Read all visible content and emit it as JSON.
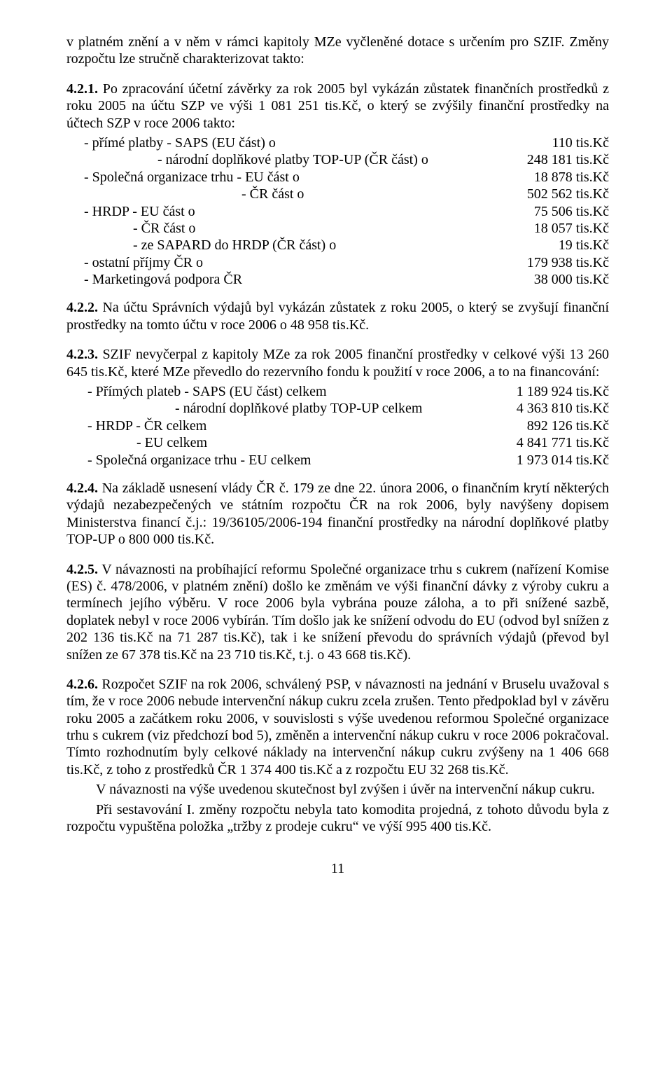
{
  "intro": {
    "line1": "v platném znění a v něm v rámci kapitoly MZe vyčleněné dotace s určením pro SZIF. Změny rozpočtu lze stručně charakterizovat  takto:"
  },
  "s421": {
    "head": "4.2.1.",
    "body": "  Po zpracování účetní závěrky za rok 2005 byl vykázán zůstatek finančních prostředků z roku 2005 na účtu SZP ve výši 1 081 251 tis.Kč, o který se zvýšily finanční prostředky na účtech SZP v roce 2006 takto:",
    "rows": [
      {
        "l": "     - přímé platby - SAPS (EU část) o",
        "r": "110  tis.Kč"
      },
      {
        "l": "                          - národní doplňkové platby TOP-UP (ČR část) o",
        "r": "248 181  tis.Kč"
      },
      {
        "l": "     - Společná organizace trhu - EU část o",
        "r": "18 878  tis.Kč"
      },
      {
        "l": "                                                  - ČR část o",
        "r": "502 562  tis.Kč"
      },
      {
        "l": "     - HRDP - EU část o",
        "r": "75 506  tis.Kč"
      },
      {
        "l": "                   - ČR část o",
        "r": "18 057  tis.Kč"
      },
      {
        "l": "                   - ze SAPARD do HRDP (ČR část) o",
        "r": "19  tis.Kč"
      },
      {
        "l": "     - ostatní příjmy ČR o",
        "r": "179 938  tis.Kč"
      },
      {
        "l": "     - Marketingová podpora ČR",
        "r": "38 000  tis.Kč"
      }
    ]
  },
  "s422": {
    "head": "4.2.2.",
    "body": "   Na účtu Správních výdajů byl vykázán zůstatek z roku 2005, o který se zvyšují finanční  prostředky na tomto účtu v roce 2006 o 48 958  tis.Kč."
  },
  "s423": {
    "head": "4.2.3.",
    "body": "  SZIF nevyčerpal  z kapitoly MZe  za rok 2005 finanční  prostředky  v celkové  výši 13 260 645 tis.Kč,  které  MZe  převedlo  do  rezervního  fondu  k použití  v roce  2006,  a  to na financování:",
    "rows": [
      {
        "l": "      - Přímých plateb - SAPS (EU část) celkem",
        "r": "1 189 924  tis.Kč"
      },
      {
        "l": "                               - národní doplňkové platby TOP-UP celkem",
        "r": "4 363 810  tis.Kč"
      },
      {
        "l": "      - HRDP - ČR celkem",
        "r": "892 126  tis.Kč"
      },
      {
        "l": "                    - EU celkem",
        "r": "4 841 771  tis.Kč"
      },
      {
        "l": "      - Společná organizace trhu - EU celkem",
        "r": "1 973 014  tis.Kč"
      }
    ]
  },
  "s424": {
    "head": "4.2.4.",
    "body": "  Na  základě  usnesení  vlády  ČR  č. 179  ze  dne 22. února 2006, o finančním krytí některých výdajů nezabezpečených ve státním rozpočtu ČR na rok 2006, byly navýšeny dopisem  Ministerstva  financí  č.j.:  19/36105/2006-194  finanční  prostředky  na  národní doplňkové platby TOP-UP o 800 000 tis.Kč."
  },
  "s425": {
    "head": "4.2.5.",
    "body": "   V návaznosti  na probíhající  reformu  Společné  organizace  trhu  s cukrem  (nařízení Komise (ES) č. 478/2006, v platném znění) došlo ke změnám ve výši finanční dávky z výroby cukru  a termínech  jejího výběru.  V roce  2006  byla  vybrána  pouze  záloha,  a  to  při  snížené sazbě, doplatek nebyl v roce 2006 vybírán. Tím došlo jak ke snížení odvodu do EU (odvod byl snížen  z 202 136 tis.Kč na 71 287 tis.Kč), tak i ke snížení převodu do správních výdajů (převod byl snížen ze 67 378 tis.Kč na 23 710 tis.Kč, t.j.  o 43 668 tis.Kč)."
  },
  "s426": {
    "head": "4.2.6.",
    "body": "   Rozpočet  SZIF  na rok  2006,  schválený  PSP,  v návaznosti  na  jednání  v Bruselu uvažoval s tím, že v roce 2006 nebude intervenční nákup cukru zcela zrušen. Tento předpoklad byl  v závěru  roku  2005  a začátkem  roku 2006, v souvislosti s výše uvedenou  reformou Společné organizace trhu s cukrem (viz předchozí bod 5), změněn a intervenční nákup cukru v roce 2006 pokračoval. Tímto rozhodnutím byly celkové náklady na intervenční nákup cukru zvýšeny  na 1 406 668 tis.Kč,  z toho  z  prostředků  ČR   1 374 400 tis.Kč  a   z rozpočtu  EU 32 268 tis.Kč.",
    "p2": "V návaznosti na výše uvedenou skutečnost byl zvýšen i úvěr na intervenční nákup cukru.",
    "p3": "Při sestavování I. změny rozpočtu nebyla tato komodita projedná, z tohoto důvodu byla z rozpočtu vypuštěna položka  „tržby z prodeje cukru“ ve výší 995 400 tis.Kč."
  },
  "pagenum": "11"
}
